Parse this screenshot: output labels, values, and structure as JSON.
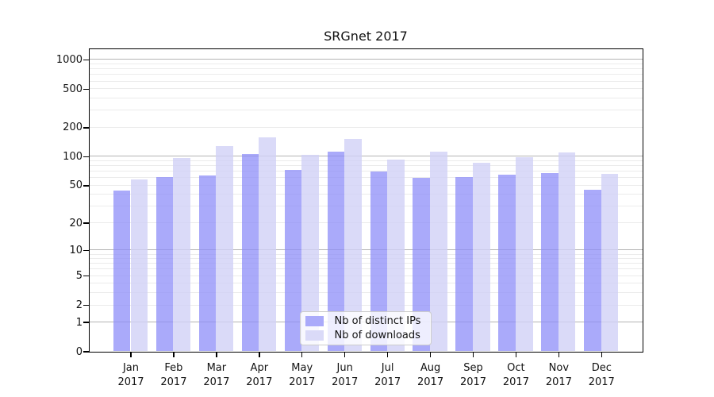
{
  "chart_data": {
    "type": "bar",
    "title": "SRGnet 2017",
    "categories": [
      "Jan 2017",
      "Feb 2017",
      "Mar 2017",
      "Apr 2017",
      "May 2017",
      "Jun 2017",
      "Jul 2017",
      "Aug 2017",
      "Sep 2017",
      "Oct 2017",
      "Nov 2017",
      "Dec 2017"
    ],
    "series": [
      {
        "name": "Nb of distinct IPs",
        "values": [
          44,
          61,
          63,
          105,
          73,
          112,
          69,
          60,
          61,
          65,
          67,
          45
        ],
        "fill": "rgba(142,142,248,0.75)",
        "legend_color": "#aaaafa"
      },
      {
        "name": "Nb of downloads",
        "values": [
          57,
          96,
          127,
          158,
          103,
          152,
          92,
          112,
          86,
          98,
          109,
          66
        ],
        "fill": "rgba(209,209,246,0.8)",
        "legend_color": "#dadaf8"
      }
    ],
    "xlabel": "",
    "ylabel": "",
    "yscale": "log1p",
    "ylim": [
      0,
      1288
    ],
    "yticks": [
      0,
      1,
      2,
      5,
      10,
      20,
      50,
      100,
      200,
      500,
      1000
    ],
    "major_gridlines": [
      1,
      10,
      100,
      1000
    ],
    "minor_gridlines": [
      2,
      3,
      4,
      5,
      6,
      7,
      8,
      9,
      20,
      30,
      40,
      50,
      60,
      70,
      80,
      90,
      200,
      300,
      400,
      500,
      600,
      700,
      800,
      900
    ],
    "grid": true,
    "legend_position": "lower center"
  }
}
